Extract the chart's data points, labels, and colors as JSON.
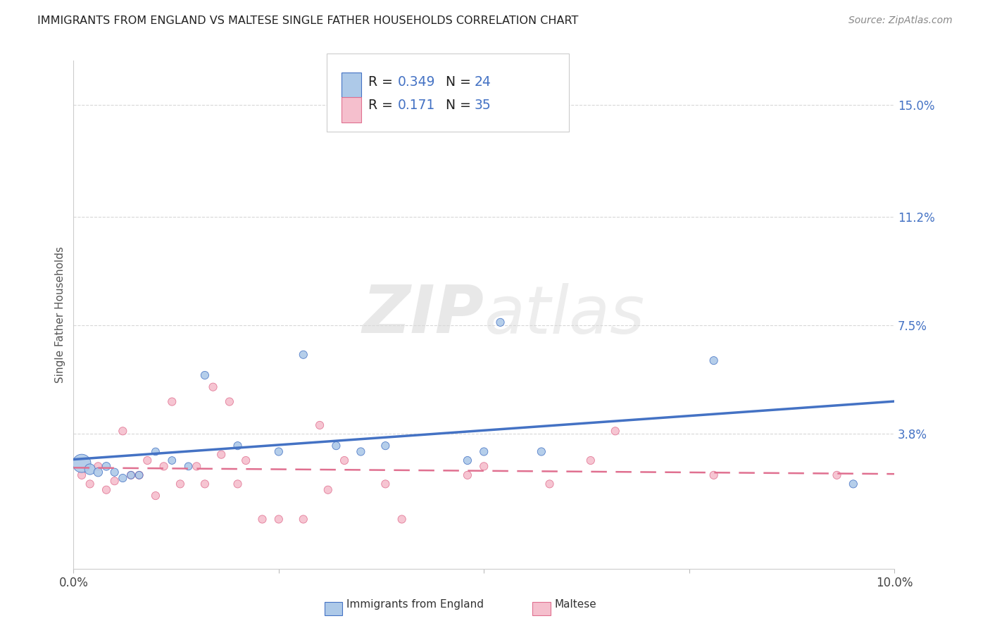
{
  "title": "IMMIGRANTS FROM ENGLAND VS MALTESE SINGLE FATHER HOUSEHOLDS CORRELATION CHART",
  "source": "Source: ZipAtlas.com",
  "ylabel": "Single Father Households",
  "xlim": [
    0.0,
    0.1
  ],
  "ylim": [
    -0.008,
    0.165
  ],
  "xticks": [
    0.0,
    0.025,
    0.05,
    0.075,
    0.1
  ],
  "xtick_labels": [
    "0.0%",
    "",
    "",
    "",
    "10.0%"
  ],
  "ytick_labels_right": [
    "15.0%",
    "11.2%",
    "7.5%",
    "3.8%"
  ],
  "ytick_vals_right": [
    0.15,
    0.112,
    0.075,
    0.038
  ],
  "color_england": "#adc9e8",
  "color_maltese": "#f5bfcd",
  "color_line_england": "#4472c4",
  "color_line_maltese": "#e07090",
  "color_blue_text": "#4472c4",
  "background_color": "#ffffff",
  "grid_color": "#d8d8d8",
  "england_x": [
    0.001,
    0.002,
    0.003,
    0.004,
    0.005,
    0.006,
    0.007,
    0.008,
    0.01,
    0.012,
    0.014,
    0.016,
    0.02,
    0.025,
    0.028,
    0.032,
    0.035,
    0.038,
    0.048,
    0.05,
    0.052,
    0.057,
    0.078,
    0.095
  ],
  "england_y": [
    0.028,
    0.026,
    0.025,
    0.027,
    0.025,
    0.023,
    0.024,
    0.024,
    0.032,
    0.029,
    0.027,
    0.058,
    0.034,
    0.032,
    0.065,
    0.034,
    0.032,
    0.034,
    0.029,
    0.032,
    0.076,
    0.032,
    0.063,
    0.021
  ],
  "england_sizes": [
    350,
    120,
    80,
    70,
    65,
    65,
    60,
    60,
    60,
    60,
    60,
    65,
    65,
    65,
    65,
    65,
    65,
    65,
    65,
    65,
    65,
    65,
    65,
    65
  ],
  "maltese_x": [
    0.001,
    0.002,
    0.003,
    0.004,
    0.005,
    0.006,
    0.007,
    0.008,
    0.009,
    0.01,
    0.011,
    0.012,
    0.013,
    0.015,
    0.016,
    0.017,
    0.018,
    0.019,
    0.02,
    0.021,
    0.023,
    0.025,
    0.028,
    0.03,
    0.031,
    0.033,
    0.038,
    0.04,
    0.048,
    0.05,
    0.058,
    0.063,
    0.066,
    0.078,
    0.093
  ],
  "maltese_y": [
    0.024,
    0.021,
    0.027,
    0.019,
    0.022,
    0.039,
    0.024,
    0.024,
    0.029,
    0.017,
    0.027,
    0.049,
    0.021,
    0.027,
    0.021,
    0.054,
    0.031,
    0.049,
    0.021,
    0.029,
    0.009,
    0.009,
    0.009,
    0.041,
    0.019,
    0.029,
    0.021,
    0.009,
    0.024,
    0.027,
    0.021,
    0.029,
    0.039,
    0.024,
    0.024
  ],
  "maltese_sizes": [
    65,
    65,
    65,
    65,
    65,
    65,
    65,
    65,
    65,
    65,
    65,
    65,
    65,
    65,
    65,
    65,
    65,
    65,
    65,
    65,
    65,
    65,
    65,
    65,
    65,
    65,
    65,
    65,
    65,
    65,
    65,
    65,
    65,
    65,
    65
  ],
  "watermark_text": "ZIPatlas",
  "watermark_zip": "ZIP",
  "watermark_atlas": "atlas"
}
